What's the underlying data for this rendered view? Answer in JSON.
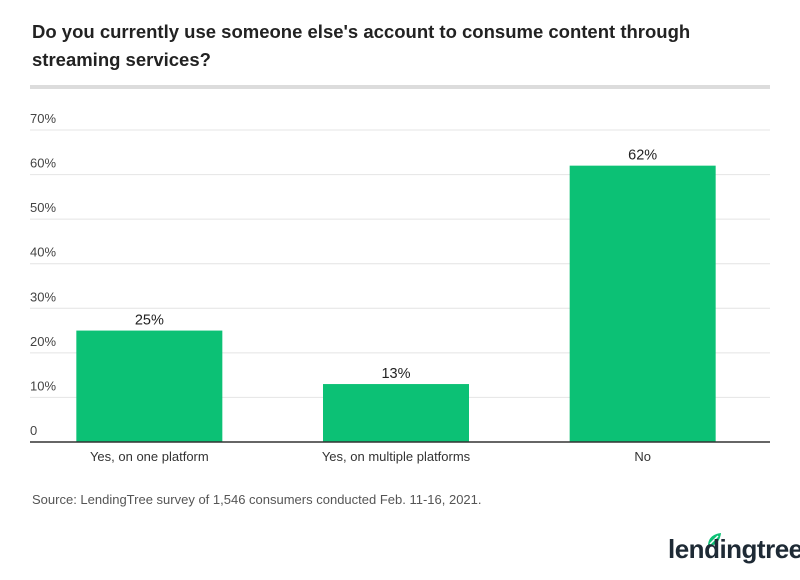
{
  "title": "Do you currently use someone else's account to consume content through streaming services?",
  "source": "Source: LendingTree survey of 1,546 consumers conducted Feb. 11-16, 2021.",
  "logo": "lendingtree",
  "colors": {
    "bar": "#0cc175",
    "grid": "#e4e4e4",
    "axis": "#333333",
    "brand": "#0cc175"
  },
  "chart_data": {
    "type": "bar",
    "title": "Do you currently use someone else's account to consume content through streaming services?",
    "categories": [
      "Yes, on one platform",
      "Yes, on multiple platforms",
      "No"
    ],
    "values": [
      25,
      13,
      62
    ],
    "data_labels": [
      "25%",
      "13%",
      "62%"
    ],
    "yticks": [
      "0",
      "10%",
      "20%",
      "30%",
      "40%",
      "50%",
      "60%",
      "70%"
    ],
    "ylim": [
      0,
      70
    ],
    "grid": true,
    "legend": "none"
  }
}
